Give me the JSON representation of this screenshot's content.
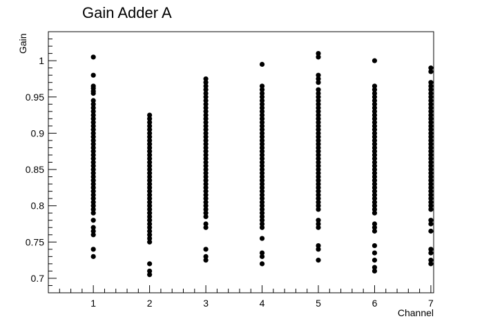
{
  "chart_data": {
    "type": "scatter",
    "title": "Gain Adder A",
    "xlabel": "Channel",
    "ylabel": "Gain",
    "xlim": [
      0.2,
      7.05
    ],
    "ylim": [
      0.68,
      1.04
    ],
    "xticks": [
      "1",
      "2",
      "3",
      "4",
      "5",
      "6",
      "7"
    ],
    "yticks": [
      "0.7",
      "0.75",
      "0.8",
      "0.85",
      "0.9",
      "0.95",
      "1"
    ],
    "grid": false,
    "marker_color": "#000000",
    "series": [
      {
        "x": 1,
        "values": [
          1.005,
          0.98,
          0.965,
          0.962,
          0.958,
          0.955,
          0.945,
          0.94,
          0.935,
          0.93,
          0.925,
          0.92,
          0.915,
          0.91,
          0.905,
          0.9,
          0.895,
          0.89,
          0.885,
          0.88,
          0.875,
          0.87,
          0.865,
          0.86,
          0.855,
          0.85,
          0.845,
          0.84,
          0.835,
          0.83,
          0.825,
          0.82,
          0.815,
          0.81,
          0.805,
          0.8,
          0.795,
          0.79,
          0.78,
          0.77,
          0.765,
          0.76,
          0.74,
          0.73
        ]
      },
      {
        "x": 2,
        "values": [
          0.925,
          0.92,
          0.915,
          0.91,
          0.905,
          0.9,
          0.895,
          0.89,
          0.885,
          0.88,
          0.875,
          0.87,
          0.865,
          0.86,
          0.855,
          0.85,
          0.845,
          0.84,
          0.835,
          0.83,
          0.825,
          0.82,
          0.815,
          0.81,
          0.805,
          0.8,
          0.795,
          0.79,
          0.785,
          0.78,
          0.775,
          0.77,
          0.765,
          0.76,
          0.755,
          0.75,
          0.72,
          0.71,
          0.705
        ]
      },
      {
        "x": 3,
        "values": [
          0.975,
          0.97,
          0.965,
          0.96,
          0.955,
          0.95,
          0.945,
          0.94,
          0.935,
          0.93,
          0.925,
          0.92,
          0.915,
          0.91,
          0.905,
          0.9,
          0.895,
          0.89,
          0.885,
          0.88,
          0.875,
          0.87,
          0.865,
          0.86,
          0.855,
          0.85,
          0.845,
          0.84,
          0.835,
          0.83,
          0.825,
          0.82,
          0.815,
          0.81,
          0.805,
          0.8,
          0.795,
          0.79,
          0.785,
          0.775,
          0.77,
          0.74,
          0.73,
          0.725
        ]
      },
      {
        "x": 4,
        "values": [
          0.995,
          0.965,
          0.96,
          0.955,
          0.95,
          0.945,
          0.94,
          0.935,
          0.93,
          0.925,
          0.92,
          0.915,
          0.91,
          0.905,
          0.9,
          0.895,
          0.89,
          0.885,
          0.88,
          0.875,
          0.87,
          0.865,
          0.86,
          0.855,
          0.85,
          0.845,
          0.84,
          0.835,
          0.83,
          0.825,
          0.82,
          0.815,
          0.81,
          0.805,
          0.8,
          0.795,
          0.79,
          0.785,
          0.78,
          0.775,
          0.77,
          0.755,
          0.735,
          0.73,
          0.72
        ]
      },
      {
        "x": 5,
        "values": [
          1.01,
          1.005,
          0.98,
          0.975,
          0.97,
          0.96,
          0.955,
          0.95,
          0.945,
          0.94,
          0.935,
          0.93,
          0.925,
          0.92,
          0.915,
          0.91,
          0.905,
          0.9,
          0.895,
          0.89,
          0.885,
          0.88,
          0.875,
          0.87,
          0.865,
          0.86,
          0.855,
          0.85,
          0.845,
          0.84,
          0.835,
          0.83,
          0.825,
          0.82,
          0.815,
          0.81,
          0.805,
          0.8,
          0.795,
          0.78,
          0.775,
          0.77,
          0.745,
          0.74,
          0.725
        ]
      },
      {
        "x": 6,
        "values": [
          1.0,
          0.965,
          0.96,
          0.955,
          0.95,
          0.945,
          0.94,
          0.935,
          0.93,
          0.925,
          0.92,
          0.915,
          0.91,
          0.905,
          0.9,
          0.895,
          0.89,
          0.885,
          0.88,
          0.875,
          0.87,
          0.865,
          0.86,
          0.855,
          0.85,
          0.845,
          0.84,
          0.835,
          0.83,
          0.825,
          0.82,
          0.815,
          0.81,
          0.805,
          0.8,
          0.795,
          0.79,
          0.775,
          0.77,
          0.765,
          0.745,
          0.735,
          0.725,
          0.715,
          0.71
        ]
      },
      {
        "x": 7,
        "values": [
          0.99,
          0.985,
          0.97,
          0.965,
          0.96,
          0.955,
          0.95,
          0.945,
          0.94,
          0.935,
          0.93,
          0.925,
          0.92,
          0.915,
          0.91,
          0.905,
          0.9,
          0.895,
          0.89,
          0.885,
          0.88,
          0.875,
          0.87,
          0.865,
          0.86,
          0.855,
          0.85,
          0.845,
          0.84,
          0.835,
          0.83,
          0.825,
          0.82,
          0.815,
          0.81,
          0.805,
          0.8,
          0.795,
          0.78,
          0.775,
          0.765,
          0.74,
          0.735,
          0.725,
          0.72
        ]
      }
    ]
  }
}
